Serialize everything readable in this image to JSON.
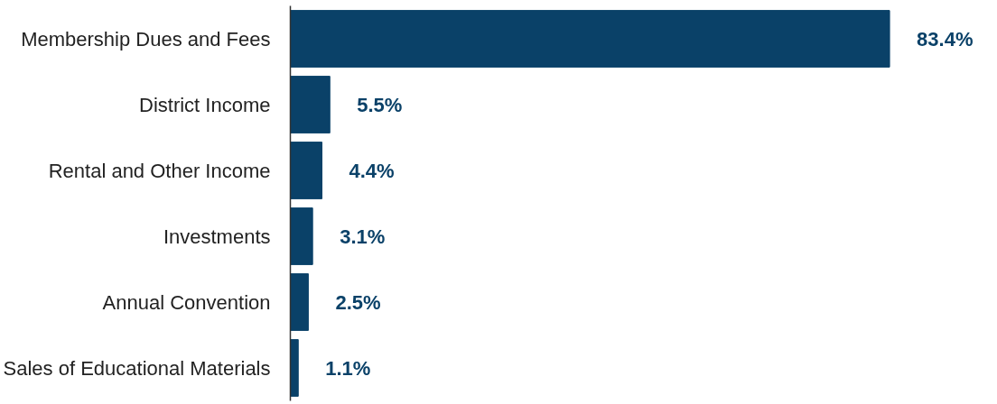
{
  "chart_data": {
    "type": "bar",
    "orientation": "horizontal",
    "categories": [
      "Membership Dues and Fees",
      "District Income",
      "Rental and Other Income",
      "Investments",
      "Annual Convention",
      "Sales of Educational Materials"
    ],
    "values": [
      83.4,
      5.5,
      4.4,
      3.1,
      2.5,
      1.1
    ],
    "value_labels": [
      "83.4%",
      "5.5%",
      "4.4%",
      "3.1%",
      "2.5%",
      "1.1%"
    ],
    "color": "#0a4168",
    "grid": false,
    "tick_labels": "y"
  }
}
